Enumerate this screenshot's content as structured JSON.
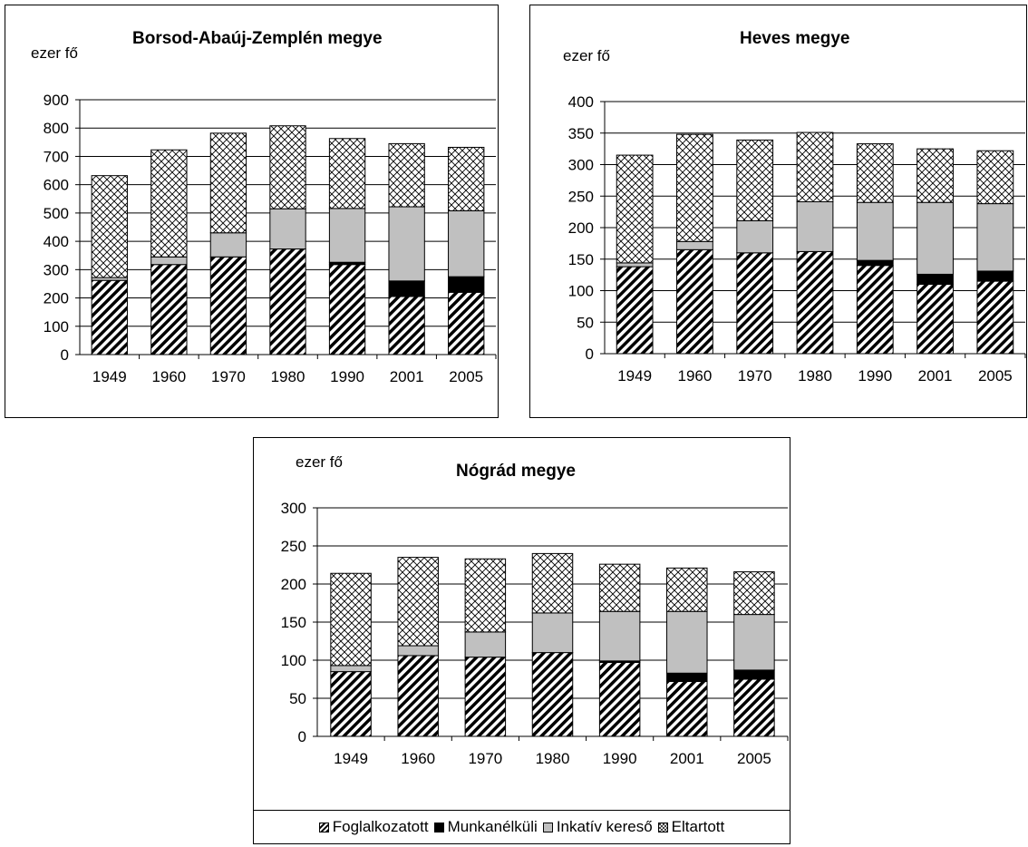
{
  "chart_data": [
    {
      "type": "bar",
      "stacked": true,
      "title": "Borsod-Abaúj-Zemplén megye",
      "ylabel": "ezer fő",
      "categories": [
        "1949",
        "1960",
        "1970",
        "1980",
        "1990",
        "2001",
        "2005"
      ],
      "ylim": [
        0,
        900
      ],
      "yticks": [
        "0",
        "100",
        "200",
        "300",
        "400",
        "500",
        "600",
        "700",
        "800",
        "900"
      ],
      "grid": true,
      "series": [
        {
          "name": "Foglalkozatott",
          "values": [
            262,
            318,
            345,
            373,
            318,
            205,
            220
          ]
        },
        {
          "name": "Munkanélküli",
          "values": [
            0,
            0,
            0,
            0,
            8,
            55,
            55
          ]
        },
        {
          "name": "Inkatív kereső",
          "values": [
            10,
            27,
            85,
            142,
            190,
            262,
            233
          ]
        },
        {
          "name": "Eltartott",
          "values": [
            360,
            378,
            352,
            293,
            247,
            223,
            224
          ]
        }
      ]
    },
    {
      "type": "bar",
      "stacked": true,
      "title": "Heves megye",
      "ylabel": "ezer fő",
      "categories": [
        "1949",
        "1960",
        "1970",
        "1980",
        "1990",
        "2001",
        "2005"
      ],
      "ylim": [
        0,
        400
      ],
      "yticks": [
        "0",
        "50",
        "100",
        "150",
        "200",
        "250",
        "300",
        "350",
        "400"
      ],
      "grid": true,
      "series": [
        {
          "name": "Foglalkozatott",
          "values": [
            138,
            165,
            160,
            162,
            140,
            110,
            115
          ]
        },
        {
          "name": "Munkanélküli",
          "values": [
            0,
            0,
            0,
            0,
            8,
            16,
            16
          ]
        },
        {
          "name": "Inkatív kereső",
          "values": [
            6,
            13,
            51,
            79,
            92,
            114,
            107
          ]
        },
        {
          "name": "Eltartott",
          "values": [
            171,
            170,
            128,
            110,
            93,
            85,
            84
          ]
        }
      ]
    },
    {
      "type": "bar",
      "stacked": true,
      "title": "Nógrád megye",
      "ylabel": "ezer fő",
      "categories": [
        "1949",
        "1960",
        "1970",
        "1980",
        "1990",
        "2001",
        "2005"
      ],
      "ylim": [
        0,
        300
      ],
      "yticks": [
        "0",
        "50",
        "100",
        "150",
        "200",
        "250",
        "300"
      ],
      "grid": true,
      "series": [
        {
          "name": "Foglalkozatott",
          "values": [
            85,
            106,
            104,
            110,
            97,
            72,
            75
          ]
        },
        {
          "name": "Munkanélküli",
          "values": [
            0,
            0,
            0,
            0,
            2,
            11,
            12
          ]
        },
        {
          "name": "Inkatív kereső",
          "values": [
            8,
            13,
            33,
            52,
            65,
            81,
            73
          ]
        },
        {
          "name": "Eltartott",
          "values": [
            121,
            116,
            96,
            78,
            62,
            57,
            56
          ]
        }
      ]
    }
  ],
  "legend": {
    "placement": "bottom",
    "items": [
      "Foglalkozatott",
      "Munkanélküli",
      "Inkatív kereső",
      "Eltartott"
    ]
  },
  "colors": {
    "inaktiv": "#c0c0c0",
    "munkanelkuli": "#000000",
    "grid": "#000000"
  }
}
